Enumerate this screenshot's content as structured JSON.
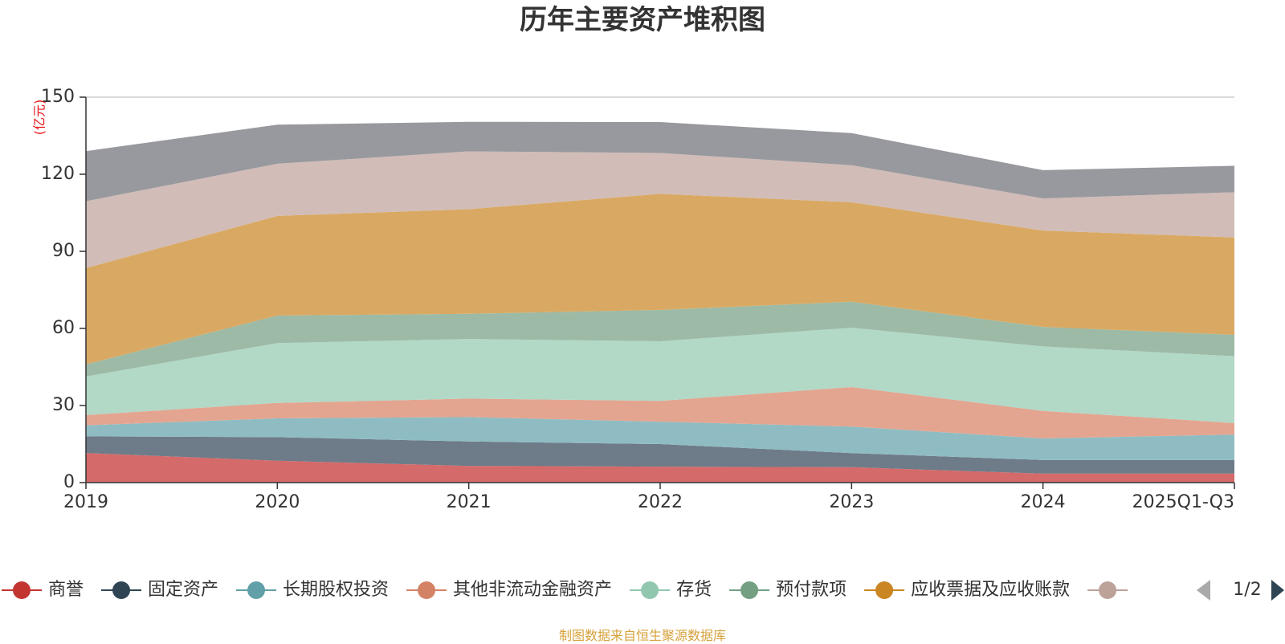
{
  "chart_data": {
    "type": "area",
    "stacked": true,
    "title": "历年主要资产堆积图",
    "unit_label": "(亿元)",
    "categories": [
      "2019",
      "2020",
      "2021",
      "2022",
      "2023",
      "2024",
      "2025Q1-Q3"
    ],
    "ylim": [
      0,
      150
    ],
    "yticks": [
      0,
      30,
      60,
      90,
      120,
      150
    ],
    "grid": true,
    "series": [
      {
        "name": "商誉",
        "color": "#d56a6a",
        "legend_color": "#c23531",
        "values": [
          11.5,
          8.5,
          6.5,
          6.2,
          6.0,
          3.5,
          3.5
        ]
      },
      {
        "name": "固定资产",
        "color": "#6e7b88",
        "legend_color": "#2f4554",
        "values": [
          6.5,
          9.2,
          9.5,
          8.8,
          5.5,
          5.3,
          5.3
        ]
      },
      {
        "name": "长期股权投资",
        "color": "#8fbcc3",
        "legend_color": "#61a0a8",
        "values": [
          4.3,
          7.3,
          9.5,
          8.7,
          10.3,
          8.4,
          9.9
        ]
      },
      {
        "name": "其他非流动金融资产",
        "color": "#e3a590",
        "legend_color": "#d48265",
        "values": [
          4.0,
          6.0,
          7.2,
          8.1,
          15.4,
          10.7,
          4.5
        ]
      },
      {
        "name": "存货",
        "color": "#b2d8c6",
        "legend_color": "#91c7ae",
        "values": [
          15.0,
          23.3,
          23.2,
          23.2,
          23.1,
          25.1,
          26.0
        ]
      },
      {
        "name": "预付款项",
        "color": "#9cbaa6",
        "legend_color": "#749f83",
        "values": [
          4.7,
          10.7,
          9.8,
          12.2,
          10.1,
          7.6,
          8.3
        ]
      },
      {
        "name": "应收票据及应收账款",
        "color": "#d9a963",
        "legend_color": "#ca8622",
        "values": [
          37.5,
          38.8,
          40.7,
          45.2,
          38.7,
          37.5,
          37.9
        ]
      },
      {
        "name": "",
        "color": "#d1bcb7",
        "legend_color": "#bda29a",
        "values": [
          26.0,
          20.3,
          22.5,
          15.9,
          14.4,
          12.5,
          17.6
        ]
      },
      {
        "name": "",
        "color": "#98999e",
        "legend_color": "#6e7074",
        "values": [
          19.5,
          15.2,
          11.5,
          12.0,
          12.5,
          11.0,
          10.3
        ]
      }
    ]
  },
  "legend": {
    "page_indicator": "1/2",
    "visible_count": 8
  },
  "footer": {
    "source_note": "制图数据来自恒生聚源数据库"
  }
}
